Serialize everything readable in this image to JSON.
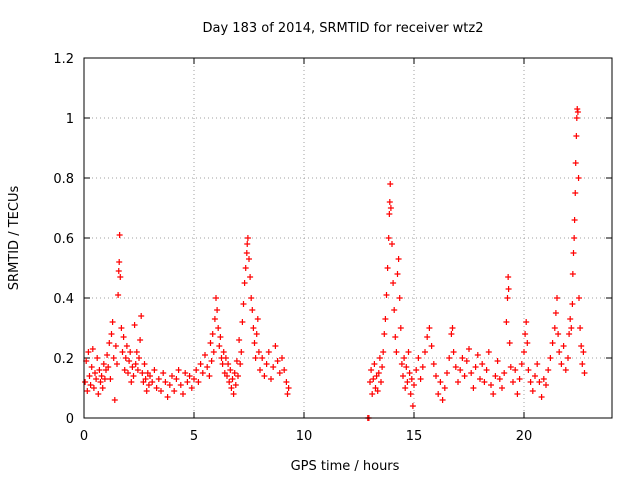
{
  "chart_data": {
    "type": "scatter",
    "title": "Day 183 of 2014, SRMTID for receiver wtz2",
    "xlabel": "GPS time / hours",
    "ylabel": "SRMTID / TECUs",
    "xlim": [
      0,
      24
    ],
    "ylim": [
      0,
      1.2
    ],
    "xticks": [
      0,
      5,
      10,
      15,
      20
    ],
    "xtick_labels": [
      "0",
      "5",
      "10",
      "15",
      "20"
    ],
    "yticks": [
      0,
      0.2,
      0.4,
      0.6,
      0.8,
      1,
      1.2
    ],
    "ytick_labels": [
      "0",
      "0.2",
      "0.4",
      "0.6",
      "0.8",
      "1",
      "1.2"
    ],
    "grid": true,
    "series": [
      {
        "name": "SRMTID",
        "marker": "plus",
        "color": "#ff0000",
        "points": [
          [
            0.05,
            0.12
          ],
          [
            0.1,
            0.19
          ],
          [
            0.15,
            0.09
          ],
          [
            0.2,
            0.22
          ],
          [
            0.25,
            0.14
          ],
          [
            0.3,
            0.11
          ],
          [
            0.35,
            0.17
          ],
          [
            0.4,
            0.23
          ],
          [
            0.45,
            0.1
          ],
          [
            0.5,
            0.15
          ],
          [
            0.55,
            0.13
          ],
          [
            0.6,
            0.2
          ],
          [
            0.65,
            0.08
          ],
          [
            0.7,
            0.16
          ],
          [
            0.75,
            0.12
          ],
          [
            0.8,
            0.14
          ],
          [
            0.85,
            0.1
          ],
          [
            0.9,
            0.18
          ],
          [
            0.95,
            0.13
          ],
          [
            1.0,
            0.16
          ],
          [
            1.05,
            0.21
          ],
          [
            1.1,
            0.17
          ],
          [
            1.15,
            0.25
          ],
          [
            1.2,
            0.13
          ],
          [
            1.25,
            0.28
          ],
          [
            1.3,
            0.32
          ],
          [
            1.35,
            0.2
          ],
          [
            1.4,
            0.06
          ],
          [
            1.45,
            0.24
          ],
          [
            1.5,
            0.18
          ],
          [
            1.55,
            0.41
          ],
          [
            1.58,
            0.49
          ],
          [
            1.6,
            0.52
          ],
          [
            1.62,
            0.61
          ],
          [
            1.65,
            0.47
          ],
          [
            1.7,
            0.3
          ],
          [
            1.75,
            0.22
          ],
          [
            1.8,
            0.27
          ],
          [
            1.85,
            0.16
          ],
          [
            1.9,
            0.2
          ],
          [
            1.95,
            0.24
          ],
          [
            2.0,
            0.15
          ],
          [
            2.05,
            0.19
          ],
          [
            2.1,
            0.22
          ],
          [
            2.15,
            0.12
          ],
          [
            2.2,
            0.17
          ],
          [
            2.25,
            0.14
          ],
          [
            2.3,
            0.31
          ],
          [
            2.35,
            0.18
          ],
          [
            2.4,
            0.22
          ],
          [
            2.45,
            0.16
          ],
          [
            2.5,
            0.2
          ],
          [
            2.55,
            0.26
          ],
          [
            2.6,
            0.34
          ],
          [
            2.65,
            0.15
          ],
          [
            2.7,
            0.12
          ],
          [
            2.75,
            0.18
          ],
          [
            2.8,
            0.13
          ],
          [
            2.85,
            0.09
          ],
          [
            2.9,
            0.15
          ],
          [
            2.95,
            0.11
          ],
          [
            3.0,
            0.14
          ],
          [
            3.1,
            0.12
          ],
          [
            3.2,
            0.16
          ],
          [
            3.3,
            0.1
          ],
          [
            3.4,
            0.13
          ],
          [
            3.5,
            0.09
          ],
          [
            3.6,
            0.15
          ],
          [
            3.7,
            0.12
          ],
          [
            3.8,
            0.07
          ],
          [
            3.9,
            0.11
          ],
          [
            4.0,
            0.14
          ],
          [
            4.1,
            0.09
          ],
          [
            4.2,
            0.13
          ],
          [
            4.3,
            0.16
          ],
          [
            4.4,
            0.11
          ],
          [
            4.5,
            0.08
          ],
          [
            4.6,
            0.15
          ],
          [
            4.7,
            0.12
          ],
          [
            4.8,
            0.14
          ],
          [
            4.9,
            0.1
          ],
          [
            5.0,
            0.13
          ],
          [
            5.1,
            0.16
          ],
          [
            5.2,
            0.12
          ],
          [
            5.3,
            0.18
          ],
          [
            5.4,
            0.15
          ],
          [
            5.5,
            0.21
          ],
          [
            5.6,
            0.17
          ],
          [
            5.7,
            0.14
          ],
          [
            5.75,
            0.25
          ],
          [
            5.8,
            0.19
          ],
          [
            5.85,
            0.28
          ],
          [
            5.9,
            0.22
          ],
          [
            5.95,
            0.33
          ],
          [
            6.0,
            0.4
          ],
          [
            6.05,
            0.36
          ],
          [
            6.1,
            0.3
          ],
          [
            6.15,
            0.24
          ],
          [
            6.2,
            0.27
          ],
          [
            6.25,
            0.2
          ],
          [
            6.3,
            0.18
          ],
          [
            6.35,
            0.22
          ],
          [
            6.4,
            0.15
          ],
          [
            6.45,
            0.2
          ],
          [
            6.5,
            0.14
          ],
          [
            6.55,
            0.18
          ],
          [
            6.6,
            0.12
          ],
          [
            6.65,
            0.16
          ],
          [
            6.7,
            0.1
          ],
          [
            6.75,
            0.13
          ],
          [
            6.8,
            0.08
          ],
          [
            6.85,
            0.15
          ],
          [
            6.9,
            0.11
          ],
          [
            6.95,
            0.19
          ],
          [
            7.0,
            0.14
          ],
          [
            7.05,
            0.26
          ],
          [
            7.1,
            0.18
          ],
          [
            7.15,
            0.22
          ],
          [
            7.2,
            0.32
          ],
          [
            7.25,
            0.38
          ],
          [
            7.3,
            0.45
          ],
          [
            7.35,
            0.5
          ],
          [
            7.4,
            0.55
          ],
          [
            7.42,
            0.58
          ],
          [
            7.45,
            0.6
          ],
          [
            7.5,
            0.53
          ],
          [
            7.55,
            0.47
          ],
          [
            7.6,
            0.4
          ],
          [
            7.65,
            0.36
          ],
          [
            7.7,
            0.3
          ],
          [
            7.75,
            0.25
          ],
          [
            7.8,
            0.2
          ],
          [
            7.85,
            0.28
          ],
          [
            7.9,
            0.33
          ],
          [
            7.95,
            0.22
          ],
          [
            8.0,
            0.16
          ],
          [
            8.1,
            0.2
          ],
          [
            8.2,
            0.14
          ],
          [
            8.3,
            0.18
          ],
          [
            8.4,
            0.22
          ],
          [
            8.5,
            0.13
          ],
          [
            8.6,
            0.17
          ],
          [
            8.7,
            0.24
          ],
          [
            8.8,
            0.19
          ],
          [
            8.9,
            0.15
          ],
          [
            9.0,
            0.2
          ],
          [
            9.1,
            0.16
          ],
          [
            9.2,
            0.12
          ],
          [
            9.25,
            0.08
          ],
          [
            9.3,
            0.1
          ],
          [
            12.9,
            0.0
          ],
          [
            12.95,
            0.0
          ],
          [
            13.0,
            0.12
          ],
          [
            13.05,
            0.16
          ],
          [
            13.1,
            0.08
          ],
          [
            13.15,
            0.13
          ],
          [
            13.2,
            0.18
          ],
          [
            13.25,
            0.1
          ],
          [
            13.3,
            0.14
          ],
          [
            13.35,
            0.09
          ],
          [
            13.4,
            0.15
          ],
          [
            13.45,
            0.2
          ],
          [
            13.5,
            0.12
          ],
          [
            13.55,
            0.17
          ],
          [
            13.6,
            0.22
          ],
          [
            13.65,
            0.28
          ],
          [
            13.7,
            0.33
          ],
          [
            13.75,
            0.41
          ],
          [
            13.8,
            0.5
          ],
          [
            13.85,
            0.6
          ],
          [
            13.88,
            0.68
          ],
          [
            13.9,
            0.72
          ],
          [
            13.92,
            0.78
          ],
          [
            13.95,
            0.7
          ],
          [
            14.0,
            0.58
          ],
          [
            14.05,
            0.45
          ],
          [
            14.1,
            0.36
          ],
          [
            14.15,
            0.27
          ],
          [
            14.2,
            0.22
          ],
          [
            14.25,
            0.48
          ],
          [
            14.3,
            0.53
          ],
          [
            14.35,
            0.4
          ],
          [
            14.4,
            0.3
          ],
          [
            14.45,
            0.18
          ],
          [
            14.5,
            0.14
          ],
          [
            14.55,
            0.2
          ],
          [
            14.6,
            0.1
          ],
          [
            14.65,
            0.17
          ],
          [
            14.7,
            0.12
          ],
          [
            14.75,
            0.22
          ],
          [
            14.8,
            0.15
          ],
          [
            14.85,
            0.08
          ],
          [
            14.9,
            0.13
          ],
          [
            14.95,
            0.04
          ],
          [
            15.0,
            0.11
          ],
          [
            15.1,
            0.16
          ],
          [
            15.2,
            0.2
          ],
          [
            15.3,
            0.13
          ],
          [
            15.4,
            0.17
          ],
          [
            15.5,
            0.22
          ],
          [
            15.6,
            0.27
          ],
          [
            15.7,
            0.3
          ],
          [
            15.8,
            0.24
          ],
          [
            15.9,
            0.18
          ],
          [
            16.0,
            0.14
          ],
          [
            16.1,
            0.08
          ],
          [
            16.2,
            0.12
          ],
          [
            16.3,
            0.06
          ],
          [
            16.4,
            0.1
          ],
          [
            16.5,
            0.15
          ],
          [
            16.6,
            0.2
          ],
          [
            16.7,
            0.28
          ],
          [
            16.75,
            0.3
          ],
          [
            16.8,
            0.22
          ],
          [
            16.9,
            0.17
          ],
          [
            17.0,
            0.12
          ],
          [
            17.1,
            0.16
          ],
          [
            17.2,
            0.2
          ],
          [
            17.3,
            0.14
          ],
          [
            17.4,
            0.19
          ],
          [
            17.5,
            0.23
          ],
          [
            17.6,
            0.15
          ],
          [
            17.7,
            0.1
          ],
          [
            17.8,
            0.17
          ],
          [
            17.9,
            0.21
          ],
          [
            18.0,
            0.13
          ],
          [
            18.1,
            0.18
          ],
          [
            18.2,
            0.12
          ],
          [
            18.3,
            0.16
          ],
          [
            18.4,
            0.22
          ],
          [
            18.5,
            0.11
          ],
          [
            18.6,
            0.08
          ],
          [
            18.7,
            0.14
          ],
          [
            18.8,
            0.19
          ],
          [
            18.9,
            0.13
          ],
          [
            19.0,
            0.1
          ],
          [
            19.1,
            0.15
          ],
          [
            19.2,
            0.32
          ],
          [
            19.25,
            0.4
          ],
          [
            19.28,
            0.47
          ],
          [
            19.3,
            0.43
          ],
          [
            19.35,
            0.25
          ],
          [
            19.4,
            0.17
          ],
          [
            19.5,
            0.12
          ],
          [
            19.6,
            0.16
          ],
          [
            19.7,
            0.08
          ],
          [
            19.8,
            0.13
          ],
          [
            19.9,
            0.18
          ],
          [
            20.0,
            0.22
          ],
          [
            20.05,
            0.28
          ],
          [
            20.1,
            0.32
          ],
          [
            20.15,
            0.25
          ],
          [
            20.2,
            0.16
          ],
          [
            20.3,
            0.12
          ],
          [
            20.4,
            0.09
          ],
          [
            20.5,
            0.14
          ],
          [
            20.6,
            0.18
          ],
          [
            20.7,
            0.12
          ],
          [
            20.8,
            0.07
          ],
          [
            20.9,
            0.13
          ],
          [
            21.0,
            0.11
          ],
          [
            21.1,
            0.16
          ],
          [
            21.2,
            0.2
          ],
          [
            21.3,
            0.25
          ],
          [
            21.4,
            0.3
          ],
          [
            21.45,
            0.35
          ],
          [
            21.5,
            0.4
          ],
          [
            21.55,
            0.28
          ],
          [
            21.6,
            0.22
          ],
          [
            21.7,
            0.18
          ],
          [
            21.8,
            0.24
          ],
          [
            21.9,
            0.16
          ],
          [
            22.0,
            0.2
          ],
          [
            22.05,
            0.28
          ],
          [
            22.1,
            0.33
          ],
          [
            22.15,
            0.3
          ],
          [
            22.2,
            0.38
          ],
          [
            22.22,
            0.48
          ],
          [
            22.25,
            0.55
          ],
          [
            22.28,
            0.6
          ],
          [
            22.3,
            0.66
          ],
          [
            22.33,
            0.75
          ],
          [
            22.35,
            0.85
          ],
          [
            22.38,
            0.94
          ],
          [
            22.4,
            1.0
          ],
          [
            22.42,
            1.03
          ],
          [
            22.45,
            1.02
          ],
          [
            22.48,
            0.8
          ],
          [
            22.5,
            0.4
          ],
          [
            22.55,
            0.3
          ],
          [
            22.6,
            0.24
          ],
          [
            22.65,
            0.18
          ],
          [
            22.7,
            0.22
          ],
          [
            22.75,
            0.15
          ]
        ]
      }
    ]
  }
}
